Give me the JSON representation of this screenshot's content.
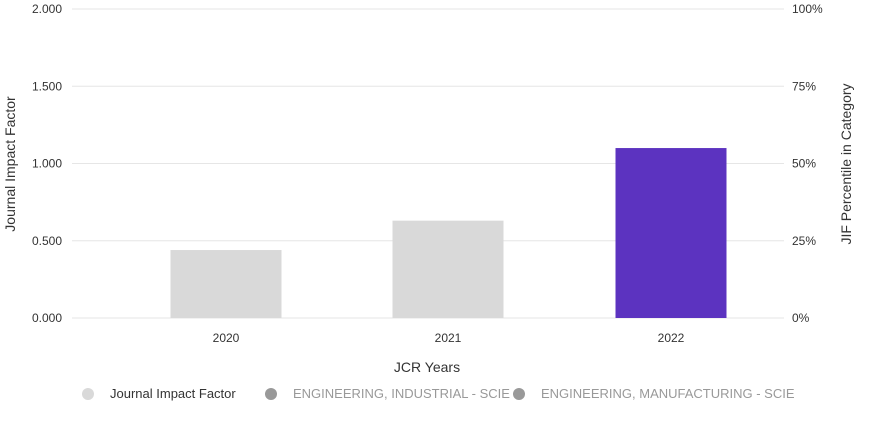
{
  "chart_data": {
    "type": "bar",
    "categories": [
      "2020",
      "2021",
      "2022"
    ],
    "series": [
      {
        "name": "Journal Impact Factor",
        "values": [
          0.44,
          0.63,
          1.1
        ]
      }
    ],
    "bar_colors": [
      "#d9d9d9",
      "#d9d9d9",
      "#5c33c0"
    ],
    "xlabel": "JCR Years",
    "ylabel": "Journal Impact Factor",
    "ylabel_right": "JIF Percentile in Category",
    "ylim": [
      0,
      2
    ],
    "yticks": [
      "0.000",
      "0.500",
      "1.000",
      "1.500",
      "2.000"
    ],
    "ylim_right": [
      0,
      100
    ],
    "yticks_right": [
      "0%",
      "25%",
      "50%",
      "75%",
      "100%"
    ],
    "grid": true
  },
  "legend": [
    {
      "label": "Journal Impact Factor",
      "color": "#d9d9d9",
      "text_color": "#333333"
    },
    {
      "label": "ENGINEERING, INDUSTRIAL - SCIE",
      "color": "#999999",
      "text_color": "#999999"
    },
    {
      "label": "ENGINEERING, MANUFACTURING - SCIE",
      "color": "#999999",
      "text_color": "#999999"
    }
  ]
}
